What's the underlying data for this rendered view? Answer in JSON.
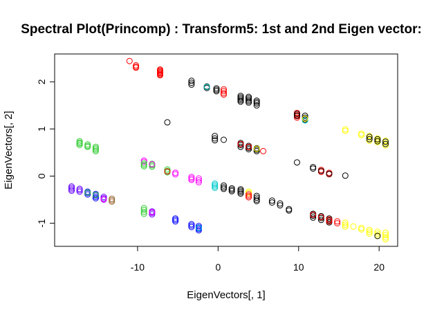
{
  "chart_data": {
    "type": "scatter",
    "title": "Spectral Plot(Princomp) : Transform5: 1st and 2nd Eigen vector:",
    "xlabel": "EigenVectors[, 1]",
    "ylabel": "EigenVectors[, 2]",
    "xlim": [
      -20.3,
      22.3
    ],
    "ylim": [
      -1.49,
      2.59
    ],
    "x_ticks": [
      -10,
      0,
      10,
      20
    ],
    "x_tick_labels": [
      "-10",
      "0",
      "10",
      "20"
    ],
    "y_ticks": [
      -1,
      0,
      1,
      2
    ],
    "y_tick_labels": [
      "-1",
      "0",
      "1",
      "2"
    ],
    "grid": false,
    "legend": "none",
    "marker": "open-circle",
    "point_groups": [
      {
        "color": "#FF0000",
        "x": -11,
        "y": [
          2.44
        ]
      },
      {
        "color": "#FF0000",
        "x": -10.2,
        "y": [
          2.35,
          2.32,
          2.3
        ]
      },
      {
        "color": "#FF0000",
        "x": -7.2,
        "y": [
          2.26,
          2.24,
          2.22,
          2.2,
          2.18,
          2.16,
          2.14
        ]
      },
      {
        "color": "#000000",
        "x": -3.3,
        "y": [
          2.02,
          1.98,
          1.94
        ]
      },
      {
        "color": "#000000",
        "x": -1.4,
        "y": [
          1.9,
          1.87
        ]
      },
      {
        "color": "#00CCCC",
        "x": -1.4,
        "y": [
          1.89
        ]
      },
      {
        "color": "#000000",
        "x": -0.2,
        "y": [
          1.86,
          1.83,
          1.8
        ]
      },
      {
        "color": "#FF0000",
        "x": 0.7,
        "y": [
          1.84,
          1.8,
          1.76,
          1.73
        ]
      },
      {
        "color": "#000000",
        "x": 2.8,
        "y": [
          1.7,
          1.67,
          1.64,
          1.61,
          1.58
        ]
      },
      {
        "color": "#000000",
        "x": 3.8,
        "y": [
          1.68,
          1.65,
          1.62,
          1.59,
          1.56
        ]
      },
      {
        "color": "#000000",
        "x": 4.8,
        "y": [
          1.6,
          1.57,
          1.54,
          1.5
        ]
      },
      {
        "color": "#FF0000",
        "x": 9.8,
        "y": [
          1.34,
          1.3,
          1.27,
          1.24
        ]
      },
      {
        "color": "#000000",
        "x": 9.8,
        "y": [
          1.32,
          1.28
        ]
      },
      {
        "color": "#000000",
        "x": 10.8,
        "y": [
          1.28,
          1.24,
          1.2
        ]
      },
      {
        "color": "#00CCCC",
        "x": 10.8,
        "y": [
          1.18
        ]
      },
      {
        "color": "#FFFF00",
        "x": 10.8,
        "y": [
          1.22
        ]
      },
      {
        "color": "#000000",
        "x": -6.3,
        "y": [
          1.14
        ]
      },
      {
        "color": "#000000",
        "x": -0.4,
        "y": [
          0.85,
          0.8,
          0.76
        ]
      },
      {
        "color": "#000000",
        "x": 0.7,
        "y": [
          0.77
        ]
      },
      {
        "color": "#000000",
        "x": 2.8,
        "y": [
          0.7,
          0.66,
          0.62
        ]
      },
      {
        "color": "#FF0000",
        "x": 2.8,
        "y": [
          0.68
        ]
      },
      {
        "color": "#000000",
        "x": 3.8,
        "y": [
          0.64,
          0.6,
          0.57
        ]
      },
      {
        "color": "#FF0000",
        "x": 3.8,
        "y": [
          0.62
        ]
      },
      {
        "color": "#000000",
        "x": 4.8,
        "y": [
          0.59,
          0.56,
          0.53
        ]
      },
      {
        "color": "#FFFF00",
        "x": 4.8,
        "y": [
          0.58
        ]
      },
      {
        "color": "#FF0000",
        "x": 5.6,
        "y": [
          0.53
        ]
      },
      {
        "color": "#000000",
        "x": 9.8,
        "y": [
          0.29
        ]
      },
      {
        "color": "#000000",
        "x": 11.8,
        "y": [
          0.19,
          0.16
        ]
      },
      {
        "color": "#FF0000",
        "x": 12.8,
        "y": [
          0.13,
          0.09
        ]
      },
      {
        "color": "#000000",
        "x": 12.8,
        "y": [
          0.11
        ]
      },
      {
        "color": "#FF0000",
        "x": 13.8,
        "y": [
          0.07,
          0.04
        ]
      },
      {
        "color": "#000000",
        "x": 13.8,
        "y": [
          0.05
        ]
      },
      {
        "color": "#000000",
        "x": 15.8,
        "y": [
          0.01
        ]
      },
      {
        "color": "#FFFF00",
        "x": 15.8,
        "y": [
          0.99,
          0.96
        ]
      },
      {
        "color": "#FFFF00",
        "x": 17.8,
        "y": [
          0.9,
          0.87
        ]
      },
      {
        "color": "#FFFF00",
        "x": 18.8,
        "y": [
          0.85,
          0.8,
          0.75
        ]
      },
      {
        "color": "#000000",
        "x": 18.8,
        "y": [
          0.83,
          0.78
        ]
      },
      {
        "color": "#FFFF00",
        "x": 19.8,
        "y": [
          0.8,
          0.76,
          0.72
        ]
      },
      {
        "color": "#000000",
        "x": 19.8,
        "y": [
          0.78,
          0.74
        ]
      },
      {
        "color": "#FFFF00",
        "x": 20.8,
        "y": [
          0.75,
          0.7,
          0.65
        ]
      },
      {
        "color": "#000000",
        "x": 20.8,
        "y": [
          0.73,
          0.68
        ]
      },
      {
        "color": "#33CC33",
        "x": -17.2,
        "y": [
          0.74,
          0.71,
          0.69,
          0.66
        ]
      },
      {
        "color": "#33CC33",
        "x": -16.2,
        "y": [
          0.67,
          0.64,
          0.62
        ]
      },
      {
        "color": "#33CC33",
        "x": -15.2,
        "y": [
          0.62,
          0.59,
          0.56,
          0.53
        ]
      },
      {
        "color": "#FF00FF",
        "x": -9.2,
        "y": [
          0.33,
          0.3
        ]
      },
      {
        "color": "#33CC33",
        "x": -9.2,
        "y": [
          0.27,
          0.24,
          0.21
        ]
      },
      {
        "color": "#33CC33",
        "x": -8.2,
        "y": [
          0.26,
          0.23,
          0.2
        ]
      },
      {
        "color": "#FF00FF",
        "x": -8.2,
        "y": [
          0.25
        ]
      },
      {
        "color": "#33CC33",
        "x": -6.3,
        "y": [
          0.14,
          0.11,
          0.08
        ]
      },
      {
        "color": "#FF0000",
        "x": -6.3,
        "y": [
          0.1
        ]
      },
      {
        "color": "#FF00FF",
        "x": -5.3,
        "y": [
          0.07,
          0.04
        ]
      },
      {
        "color": "#FF00FF",
        "x": -3.3,
        "y": [
          -0.02,
          -0.05,
          -0.08
        ]
      },
      {
        "color": "#FF00FF",
        "x": -2.4,
        "y": [
          -0.05,
          -0.09,
          -0.13
        ]
      },
      {
        "color": "#00CCCC",
        "x": -0.4,
        "y": [
          -0.16,
          -0.19,
          -0.22,
          -0.25
        ]
      },
      {
        "color": "#000000",
        "x": 0.7,
        "y": [
          -0.2,
          -0.24,
          -0.27
        ]
      },
      {
        "color": "#000000",
        "x": 1.7,
        "y": [
          -0.26,
          -0.29,
          -0.32
        ]
      },
      {
        "color": "#000000",
        "x": 2.8,
        "y": [
          -0.28,
          -0.31,
          -0.34,
          -0.37
        ]
      },
      {
        "color": "#FFFF00",
        "x": 3.8,
        "y": [
          -0.33,
          -0.36
        ]
      },
      {
        "color": "#FF0000",
        "x": 3.8,
        "y": [
          -0.39,
          -0.42,
          -0.45
        ]
      },
      {
        "color": "#000000",
        "x": 4.8,
        "y": [
          -0.42,
          -0.46,
          -0.5,
          -0.53
        ]
      },
      {
        "color": "#000000",
        "x": 6.7,
        "y": [
          -0.52,
          -0.56
        ]
      },
      {
        "color": "#000000",
        "x": 7.7,
        "y": [
          -0.58,
          -0.62
        ]
      },
      {
        "color": "#000000",
        "x": 8.8,
        "y": [
          -0.7,
          -0.73
        ]
      },
      {
        "color": "#000000",
        "x": 11.8,
        "y": [
          -0.8,
          -0.84,
          -0.88
        ]
      },
      {
        "color": "#FF0000",
        "x": 11.8,
        "y": [
          -0.82
        ]
      },
      {
        "color": "#000000",
        "x": 12.8,
        "y": [
          -0.85,
          -0.89,
          -0.93
        ]
      },
      {
        "color": "#FF0000",
        "x": 12.8,
        "y": [
          -0.87
        ]
      },
      {
        "color": "#000000",
        "x": 13.8,
        "y": [
          -0.9,
          -0.94,
          -0.98
        ]
      },
      {
        "color": "#FF0000",
        "x": 13.8,
        "y": [
          -0.92,
          -0.96
        ]
      },
      {
        "color": "#FF0000",
        "x": 14.8,
        "y": [
          -0.96,
          -1.0
        ]
      },
      {
        "color": "#FFFF00",
        "x": 15.8,
        "y": [
          -0.99,
          -1.03,
          -1.07
        ]
      },
      {
        "color": "#FFFF00",
        "x": 16.8,
        "y": [
          -1.07
        ]
      },
      {
        "color": "#FFFF00",
        "x": 17.8,
        "y": [
          -1.1,
          -1.13
        ]
      },
      {
        "color": "#FFFF00",
        "x": 18.8,
        "y": [
          -1.14,
          -1.18,
          -1.22
        ]
      },
      {
        "color": "#FFFF00",
        "x": 19.8,
        "y": [
          -1.18,
          -1.22,
          -1.26
        ]
      },
      {
        "color": "#000000",
        "x": 19.8,
        "y": [
          -1.27
        ]
      },
      {
        "color": "#FFFF00",
        "x": 20.8,
        "y": [
          -1.2,
          -1.25,
          -1.3,
          -1.34
        ]
      },
      {
        "color": "#6600FF",
        "x": -18.2,
        "y": [
          -0.22,
          -0.25,
          -0.28,
          -0.31
        ]
      },
      {
        "color": "#6600FF",
        "x": -17.2,
        "y": [
          -0.27,
          -0.3,
          -0.33
        ]
      },
      {
        "color": "#0000FF",
        "x": -16.2,
        "y": [
          -0.33,
          -0.36,
          -0.39
        ]
      },
      {
        "color": "#33CC33",
        "x": -16.2,
        "y": [
          -0.35
        ]
      },
      {
        "color": "#0000FF",
        "x": -15.2,
        "y": [
          -0.38,
          -0.41,
          -0.44,
          -0.47
        ]
      },
      {
        "color": "#33CC33",
        "x": -15.2,
        "y": [
          -0.4
        ]
      },
      {
        "color": "#6600FF",
        "x": -14.2,
        "y": [
          -0.44,
          -0.47,
          -0.5
        ]
      },
      {
        "color": "#FF00FF",
        "x": -14.2,
        "y": [
          -0.49
        ]
      },
      {
        "color": "#996633",
        "x": -13.2,
        "y": [
          -0.48,
          -0.51,
          -0.54
        ]
      },
      {
        "color": "#33CC33",
        "x": -9.2,
        "y": [
          -0.68,
          -0.72,
          -0.76,
          -0.8
        ]
      },
      {
        "color": "#6600FF",
        "x": -8.2,
        "y": [
          -0.75,
          -0.78,
          -0.81
        ]
      },
      {
        "color": "#FF00FF",
        "x": -8.2,
        "y": [
          -0.77
        ]
      },
      {
        "color": "#0000FF",
        "x": -5.3,
        "y": [
          -0.9,
          -0.93,
          -0.96
        ]
      },
      {
        "color": "#0000FF",
        "x": -3.3,
        "y": [
          -1.02,
          -1.05,
          -1.08
        ]
      },
      {
        "color": "#0000FF",
        "x": -2.4,
        "y": [
          -1.06,
          -1.09,
          -1.12,
          -1.15
        ]
      },
      {
        "color": "#00CCCC",
        "x": -2.4,
        "y": [
          -1.1
        ]
      }
    ]
  }
}
